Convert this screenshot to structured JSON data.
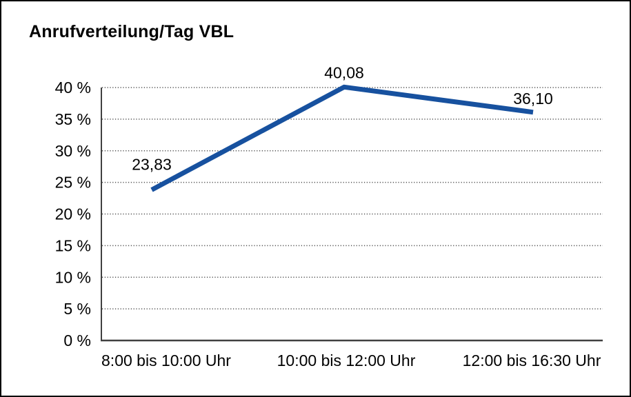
{
  "figure": {
    "background_color": "#ffffff",
    "border_color": "#000000"
  },
  "chart_data": {
    "type": "line",
    "title": "Anrufverteilung/Tag VBL",
    "categories": [
      "8:00 bis 10:00 Uhr",
      "10:00 bis 12:00 Uhr",
      "12:00 bis 16:30 Uhr"
    ],
    "values": [
      23.83,
      40.08,
      36.1
    ],
    "value_labels": [
      "23,83",
      "40,08",
      "36,10"
    ],
    "xlabel": "",
    "ylabel": "",
    "ylim": [
      0,
      40
    ],
    "y_tick_step": 5,
    "y_tick_labels": [
      "0 %",
      "5 %",
      "10 %",
      "15 %",
      "20 %",
      "25 %",
      "30 %",
      "35 %",
      "40 %"
    ],
    "grid": "horizontal-dotted",
    "legend": "none",
    "colors": {
      "line": "#17519f",
      "text": "#000000",
      "axis": "#404040",
      "gridline": "#4d4d4d"
    }
  }
}
